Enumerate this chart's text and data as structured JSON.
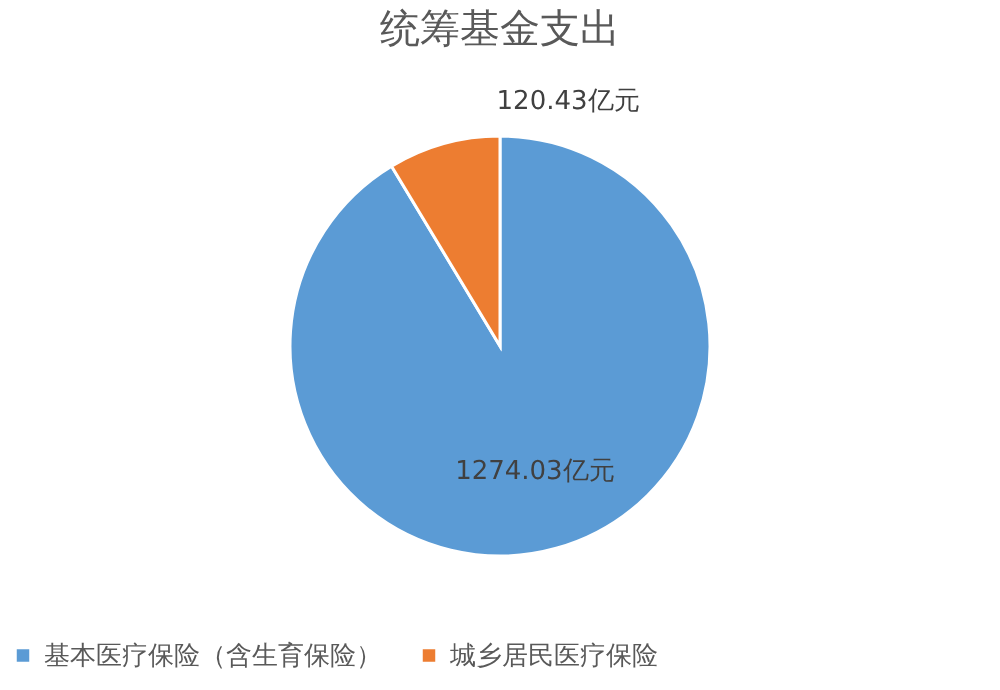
{
  "chart_data": {
    "type": "pie",
    "title": "统筹基金支出",
    "categories": [
      "基本医疗保险（含生育保险）",
      "城乡居民医疗保险"
    ],
    "values": [
      1274.03,
      120.43
    ],
    "colors": [
      "#5b9bd5",
      "#ed7d31"
    ],
    "value_labels": [
      "1274.03亿元",
      "120.43亿元"
    ],
    "legend": "bottom"
  }
}
